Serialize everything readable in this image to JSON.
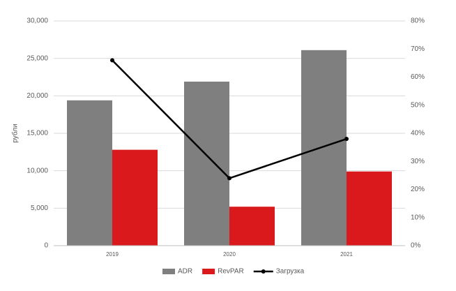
{
  "chart_data": {
    "type": "bar",
    "categories": [
      "2019",
      "2020",
      "2021"
    ],
    "y_label": "рубли",
    "series": [
      {
        "name": "ADR",
        "color": "#7f7f7f",
        "values": [
          19400,
          21900,
          26100
        ]
      },
      {
        "name": "RevPAR",
        "color": "#d9191c",
        "values": [
          12800,
          5200,
          9900
        ]
      },
      {
        "name": "Загрузка",
        "color": "#000000",
        "type": "line",
        "axis": "y2",
        "values": [
          66,
          24,
          38
        ]
      }
    ],
    "ylim": [
      0,
      30000
    ],
    "yticks": [
      {
        "value": 0,
        "label": "0"
      },
      {
        "value": 5000,
        "label": "5,000"
      },
      {
        "value": 10000,
        "label": "10,000"
      },
      {
        "value": 15000,
        "label": "15,000"
      },
      {
        "value": 20000,
        "label": "20,000"
      },
      {
        "value": 25000,
        "label": "25,000"
      },
      {
        "value": 30000,
        "label": "30,000"
      }
    ],
    "y2lim": [
      0,
      80
    ],
    "y2ticks": [
      {
        "value": 0,
        "label": "0%"
      },
      {
        "value": 10,
        "label": "10%"
      },
      {
        "value": 20,
        "label": "20%"
      },
      {
        "value": 30,
        "label": "30%"
      },
      {
        "value": 40,
        "label": "40%"
      },
      {
        "value": 50,
        "label": "50%"
      },
      {
        "value": 60,
        "label": "60%"
      },
      {
        "value": 70,
        "label": "70%"
      },
      {
        "value": 80,
        "label": "80%"
      }
    ],
    "grid": true,
    "legend": "bottom"
  }
}
